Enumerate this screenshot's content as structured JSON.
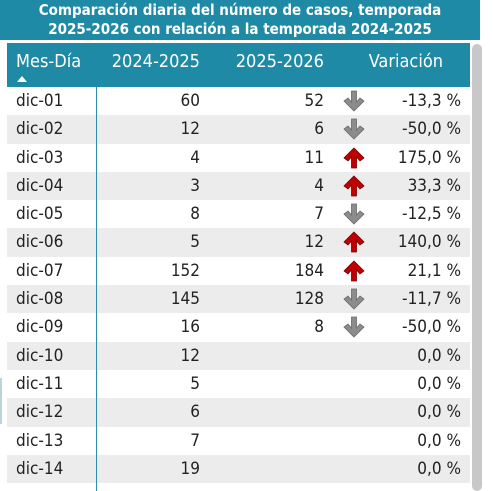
{
  "title": {
    "line1": "Comparación diaria del número de casos, temporada",
    "line2": "2025-2026 con relación a la temporada 2024-2025"
  },
  "colors": {
    "header": "#1f8aa6",
    "up": "#c00000",
    "down": "#8c8c8c"
  },
  "columns": {
    "date": "Mes-Día",
    "a": "2024-2025",
    "b": "2025-2026",
    "var": "Variación"
  },
  "rows": [
    {
      "date": "dic-01",
      "a": "60",
      "b": "52",
      "trend": "down",
      "var": "-13,3 %"
    },
    {
      "date": "dic-02",
      "a": "12",
      "b": "6",
      "trend": "down",
      "var": "-50,0 %"
    },
    {
      "date": "dic-03",
      "a": "4",
      "b": "11",
      "trend": "up",
      "var": "175,0 %"
    },
    {
      "date": "dic-04",
      "a": "3",
      "b": "4",
      "trend": "up",
      "var": "33,3 %"
    },
    {
      "date": "dic-05",
      "a": "8",
      "b": "7",
      "trend": "down",
      "var": "-12,5 %"
    },
    {
      "date": "dic-06",
      "a": "5",
      "b": "12",
      "trend": "up",
      "var": "140,0 %"
    },
    {
      "date": "dic-07",
      "a": "152",
      "b": "184",
      "trend": "up",
      "var": "21,1 %"
    },
    {
      "date": "dic-08",
      "a": "145",
      "b": "128",
      "trend": "down",
      "var": "-11,7 %"
    },
    {
      "date": "dic-09",
      "a": "16",
      "b": "8",
      "trend": "down",
      "var": "-50,0 %"
    },
    {
      "date": "dic-10",
      "a": "12",
      "b": "",
      "trend": "none",
      "var": "0,0 %"
    },
    {
      "date": "dic-11",
      "a": "5",
      "b": "",
      "trend": "none",
      "var": "0,0 %"
    },
    {
      "date": "dic-12",
      "a": "6",
      "b": "",
      "trend": "none",
      "var": "0,0 %"
    },
    {
      "date": "dic-13",
      "a": "7",
      "b": "",
      "trend": "none",
      "var": "0,0 %"
    },
    {
      "date": "dic-14",
      "a": "19",
      "b": "",
      "trend": "none",
      "var": "0,0 %"
    }
  ]
}
